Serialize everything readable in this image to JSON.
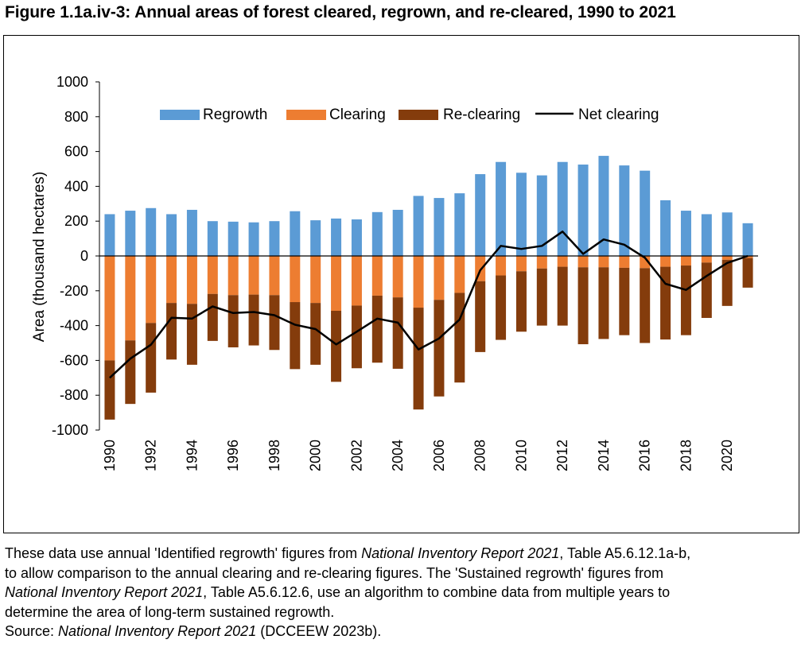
{
  "figure": {
    "title": "Figure 1.1a.iv-3: Annual areas of forest cleared, regrown, and re-cleared, 1990 to 2021"
  },
  "notes": {
    "line1_pre": "These data use annual 'Identified regrowth' figures from ",
    "line1_ital": "National Inventory Report 2021",
    "line1_post": ", Table A5.6.12.1a-b,",
    "line2": "to allow comparison to the annual clearing and re-clearing figures. The 'Sustained regrowth' figures from",
    "line3_ital": "National Inventory Report 2021",
    "line3_post": ", Table A5.6.12.6, use an algorithm to combine data from multiple years to",
    "line4": "determine the area of long-term sustained regrowth.",
    "source_pre": "Source: ",
    "source_ital": "National Inventory Report 2021",
    "source_post": " (DCCEEW 2023b)."
  },
  "chart_data": {
    "type": "bar",
    "title": "Annual areas of forest cleared, regrown, and re-cleared, 1990 to 2021",
    "xlabel": "",
    "ylabel": "Area (thousand hectares)",
    "ylim": [
      -1000,
      1000
    ],
    "yticks": [
      1000,
      800,
      600,
      400,
      200,
      0,
      -200,
      -400,
      -600,
      -800,
      -1000
    ],
    "grid": false,
    "legend_position": "top",
    "categories": [
      1990,
      1991,
      1992,
      1993,
      1994,
      1995,
      1996,
      1997,
      1998,
      1999,
      2000,
      2001,
      2002,
      2003,
      2004,
      2005,
      2006,
      2007,
      2008,
      2009,
      2010,
      2011,
      2012,
      2013,
      2014,
      2015,
      2016,
      2017,
      2018,
      2019,
      2020,
      2021
    ],
    "tick_labels": [
      "1990",
      "1992",
      "1994",
      "1996",
      "1998",
      "2000",
      "2002",
      "2004",
      "2006",
      "2008",
      "2010",
      "2012",
      "2014",
      "2016",
      "2018",
      "2020"
    ],
    "series": [
      {
        "name": "Regrowth",
        "kind": "bar",
        "color": "#5B9BD5",
        "values": [
          240,
          260,
          275,
          240,
          265,
          200,
          197,
          193,
          200,
          257,
          205,
          215,
          210,
          252,
          265,
          345,
          333,
          360,
          470,
          540,
          478,
          463,
          540,
          525,
          575,
          520,
          490,
          320,
          260,
          240,
          250,
          188
        ]
      },
      {
        "name": "Clearing",
        "kind": "bar",
        "color": "#ED7D31",
        "values": [
          -600,
          -485,
          -385,
          -270,
          -275,
          -218,
          -225,
          -222,
          -225,
          -265,
          -270,
          -315,
          -285,
          -228,
          -238,
          -297,
          -252,
          -212,
          -145,
          -112,
          -88,
          -72,
          -62,
          -65,
          -65,
          -68,
          -70,
          -62,
          -55,
          -38,
          -22,
          -12
        ]
      },
      {
        "name": "Re-clearing",
        "kind": "bar",
        "color": "#843C0C",
        "values": [
          -340,
          -365,
          -400,
          -325,
          -350,
          -270,
          -300,
          -292,
          -315,
          -385,
          -355,
          -408,
          -360,
          -385,
          -410,
          -585,
          -555,
          -515,
          -407,
          -370,
          -347,
          -328,
          -338,
          -442,
          -412,
          -387,
          -430,
          -418,
          -400,
          -318,
          -265,
          -170
        ]
      },
      {
        "name": "Net clearing",
        "kind": "line",
        "color": "#000000",
        "values": [
          -700,
          -590,
          -510,
          -355,
          -360,
          -290,
          -328,
          -322,
          -340,
          -395,
          -420,
          -508,
          -435,
          -360,
          -383,
          -537,
          -474,
          -365,
          -82,
          58,
          40,
          58,
          140,
          12,
          95,
          65,
          -10,
          -160,
          -195,
          -115,
          -40,
          0
        ]
      }
    ]
  }
}
